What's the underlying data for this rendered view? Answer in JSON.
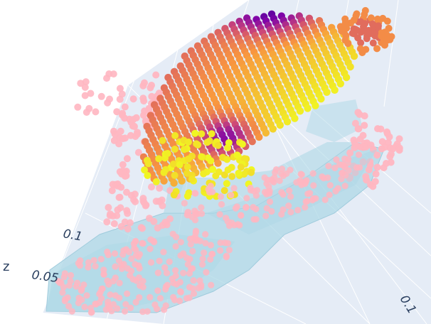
{
  "chart_data": {
    "type": "scatter3d",
    "title": "",
    "axes": {
      "z": {
        "title": "z",
        "tick_labels": [
          "0.05",
          "0.1"
        ]
      },
      "other": {
        "tick_labels": [
          "0.1"
        ]
      }
    },
    "scene_background": "#e5ecf6",
    "grid": true,
    "legend": "none",
    "series": [
      {
        "kind": "mesh",
        "color": "#add8e6",
        "opacity": 0.75
      },
      {
        "kind": "points",
        "color": "#ffb6c1"
      },
      {
        "kind": "points",
        "colorscale": "plasma",
        "colorscale_stops": [
          "#0d0887",
          "#7e03a8",
          "#cc4778",
          "#f89540",
          "#f0f921"
        ]
      }
    ]
  }
}
